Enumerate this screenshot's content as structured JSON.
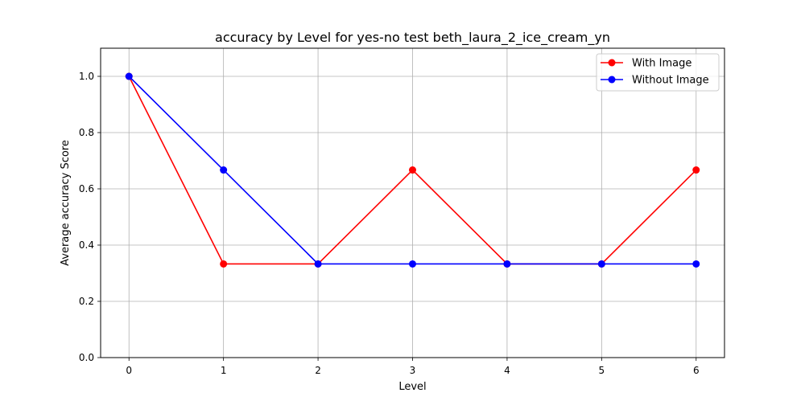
{
  "chart_data": {
    "type": "line",
    "title": "accuracy by Level for yes-no test beth_laura_2_ice_cream_yn",
    "xlabel": "Level",
    "ylabel": "Average accuracy Score",
    "x": [
      0,
      1,
      2,
      3,
      4,
      5,
      6
    ],
    "xlim": [
      -0.3,
      6.3
    ],
    "ylim": [
      0.0,
      1.1
    ],
    "x_ticks": [
      "0",
      "1",
      "2",
      "3",
      "4",
      "5",
      "6"
    ],
    "y_ticks": [
      "0.0",
      "0.2",
      "0.4",
      "0.6",
      "0.8",
      "1.0"
    ],
    "grid": true,
    "legend_position": "top-right",
    "series": [
      {
        "name": "With Image",
        "color": "#ff0000",
        "marker": "circle",
        "values": [
          1.0,
          0.333,
          0.333,
          0.667,
          0.333,
          0.333,
          0.667
        ]
      },
      {
        "name": "Without Image",
        "color": "#0000ff",
        "marker": "circle",
        "values": [
          1.0,
          0.667,
          0.333,
          0.333,
          0.333,
          0.333,
          0.333
        ]
      }
    ]
  }
}
